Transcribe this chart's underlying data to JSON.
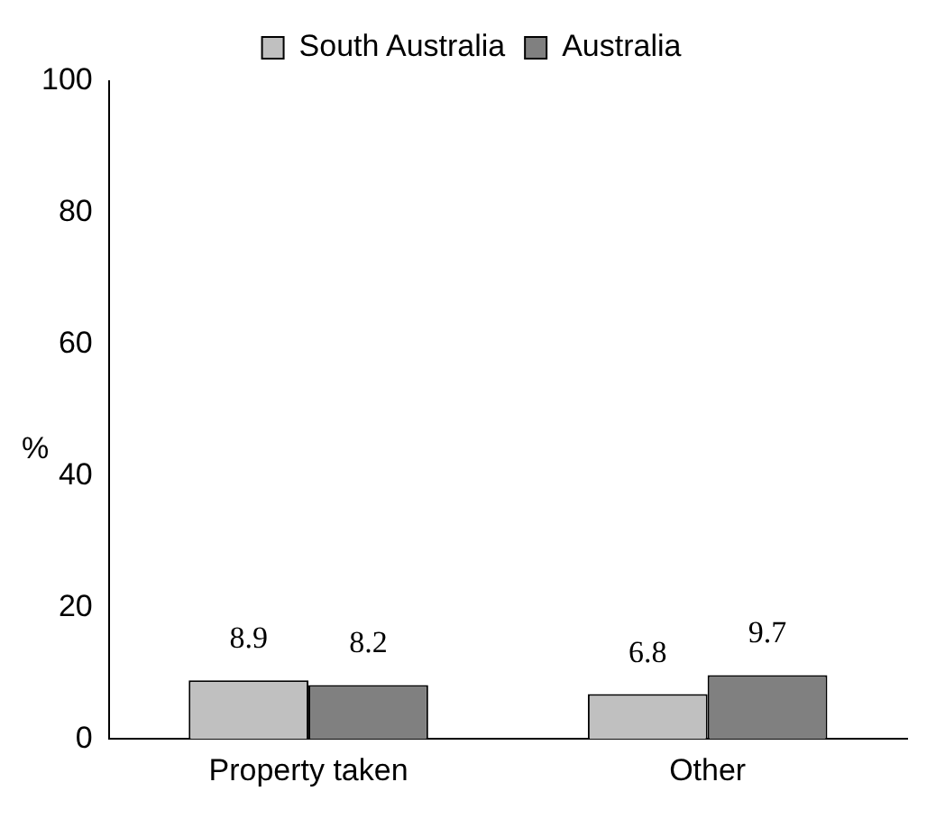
{
  "chart_data": {
    "type": "bar",
    "ylabel": "%",
    "categories": [
      "Property taken",
      "Other"
    ],
    "series": [
      {
        "name": "South Australia",
        "color": "#c0c0c0",
        "values": [
          8.9,
          6.8
        ]
      },
      {
        "name": "Australia",
        "color": "#808080",
        "values": [
          8.2,
          9.7
        ]
      }
    ],
    "ylim": [
      0,
      100
    ],
    "yticks": [
      0,
      20,
      40,
      60,
      80,
      100
    ],
    "grid": false,
    "legend": "top",
    "data_labels": true
  }
}
